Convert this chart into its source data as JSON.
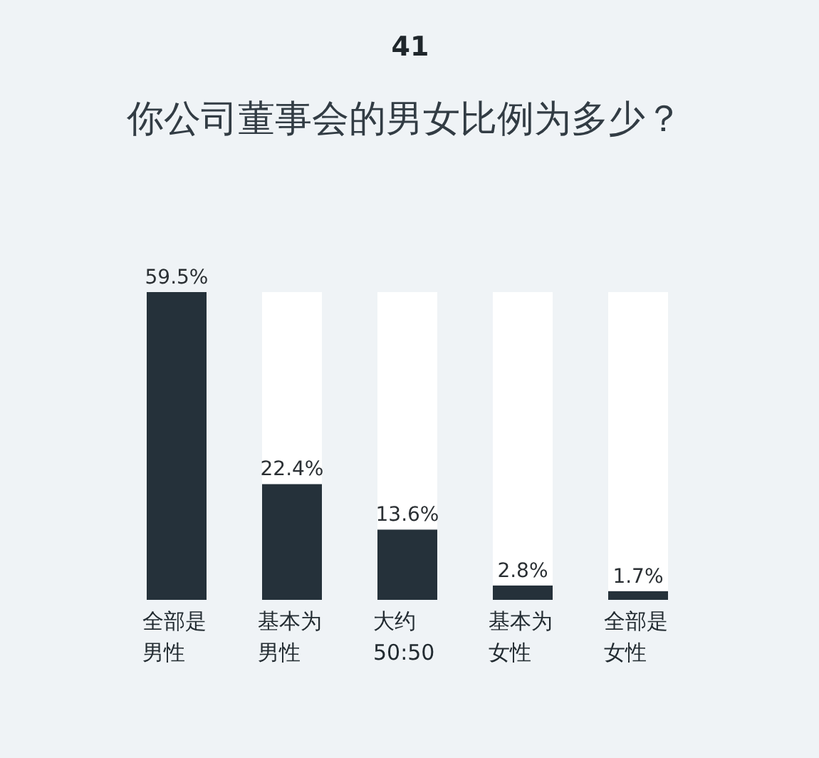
{
  "chart_data": {
    "type": "bar",
    "title": "你公司董事会的男女比例为多少？",
    "annotations": [
      "41"
    ],
    "categories": [
      "全部是男性",
      "基本为男性",
      "大约50:50",
      "基本为女性",
      "全部是女性"
    ],
    "stacked": true,
    "series": [
      {
        "color": "#25313a",
        "values": [
          59.5,
          22.4,
          13.6,
          2.8,
          1.7
        ],
        "value_labels": [
          "59.5%",
          "22.4%",
          "13.6%",
          "2.8%",
          "1.7%"
        ]
      },
      {
        "color": "#ffffff",
        "values": [
          0,
          37.1,
          45.9,
          56.7,
          57.8
        ]
      }
    ]
  }
}
